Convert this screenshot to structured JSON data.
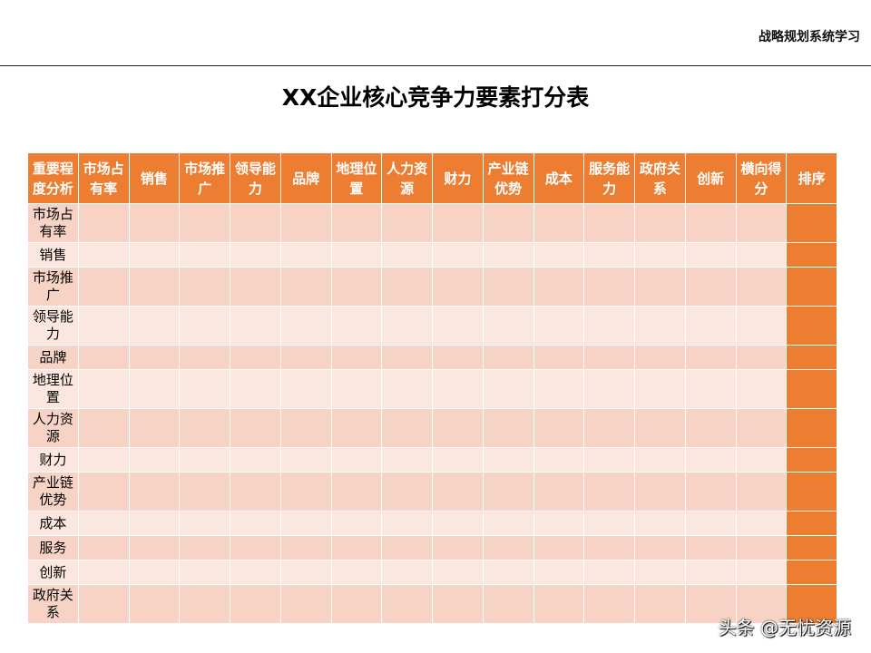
{
  "header": {
    "brand": "战略规划系统学习"
  },
  "title": "XX企业核心竞争力要素打分表",
  "table": {
    "corner": "重要程度分析",
    "columns": [
      "市场占有率",
      "销售",
      "市场推广",
      "领导能力",
      "品牌",
      "地理位置",
      "人力资源",
      "财力",
      "产业链优势",
      "成本",
      "服务能力",
      "政府关系",
      "创新",
      "横向得分",
      "排序"
    ],
    "rows": [
      "市场占有率",
      "销售",
      "市场推广",
      "领导能力",
      "品牌",
      "地理位置",
      "人力资源",
      "财力",
      "产业链优势",
      "成本",
      "服务",
      "创新",
      "政府关系"
    ]
  },
  "colors": {
    "header": "#ED7D31",
    "row_odd": "#F7D3C6",
    "row_even": "#FBE7E0",
    "rank_column": "#ED7D31"
  },
  "watermark": "头条 @无忧资源"
}
